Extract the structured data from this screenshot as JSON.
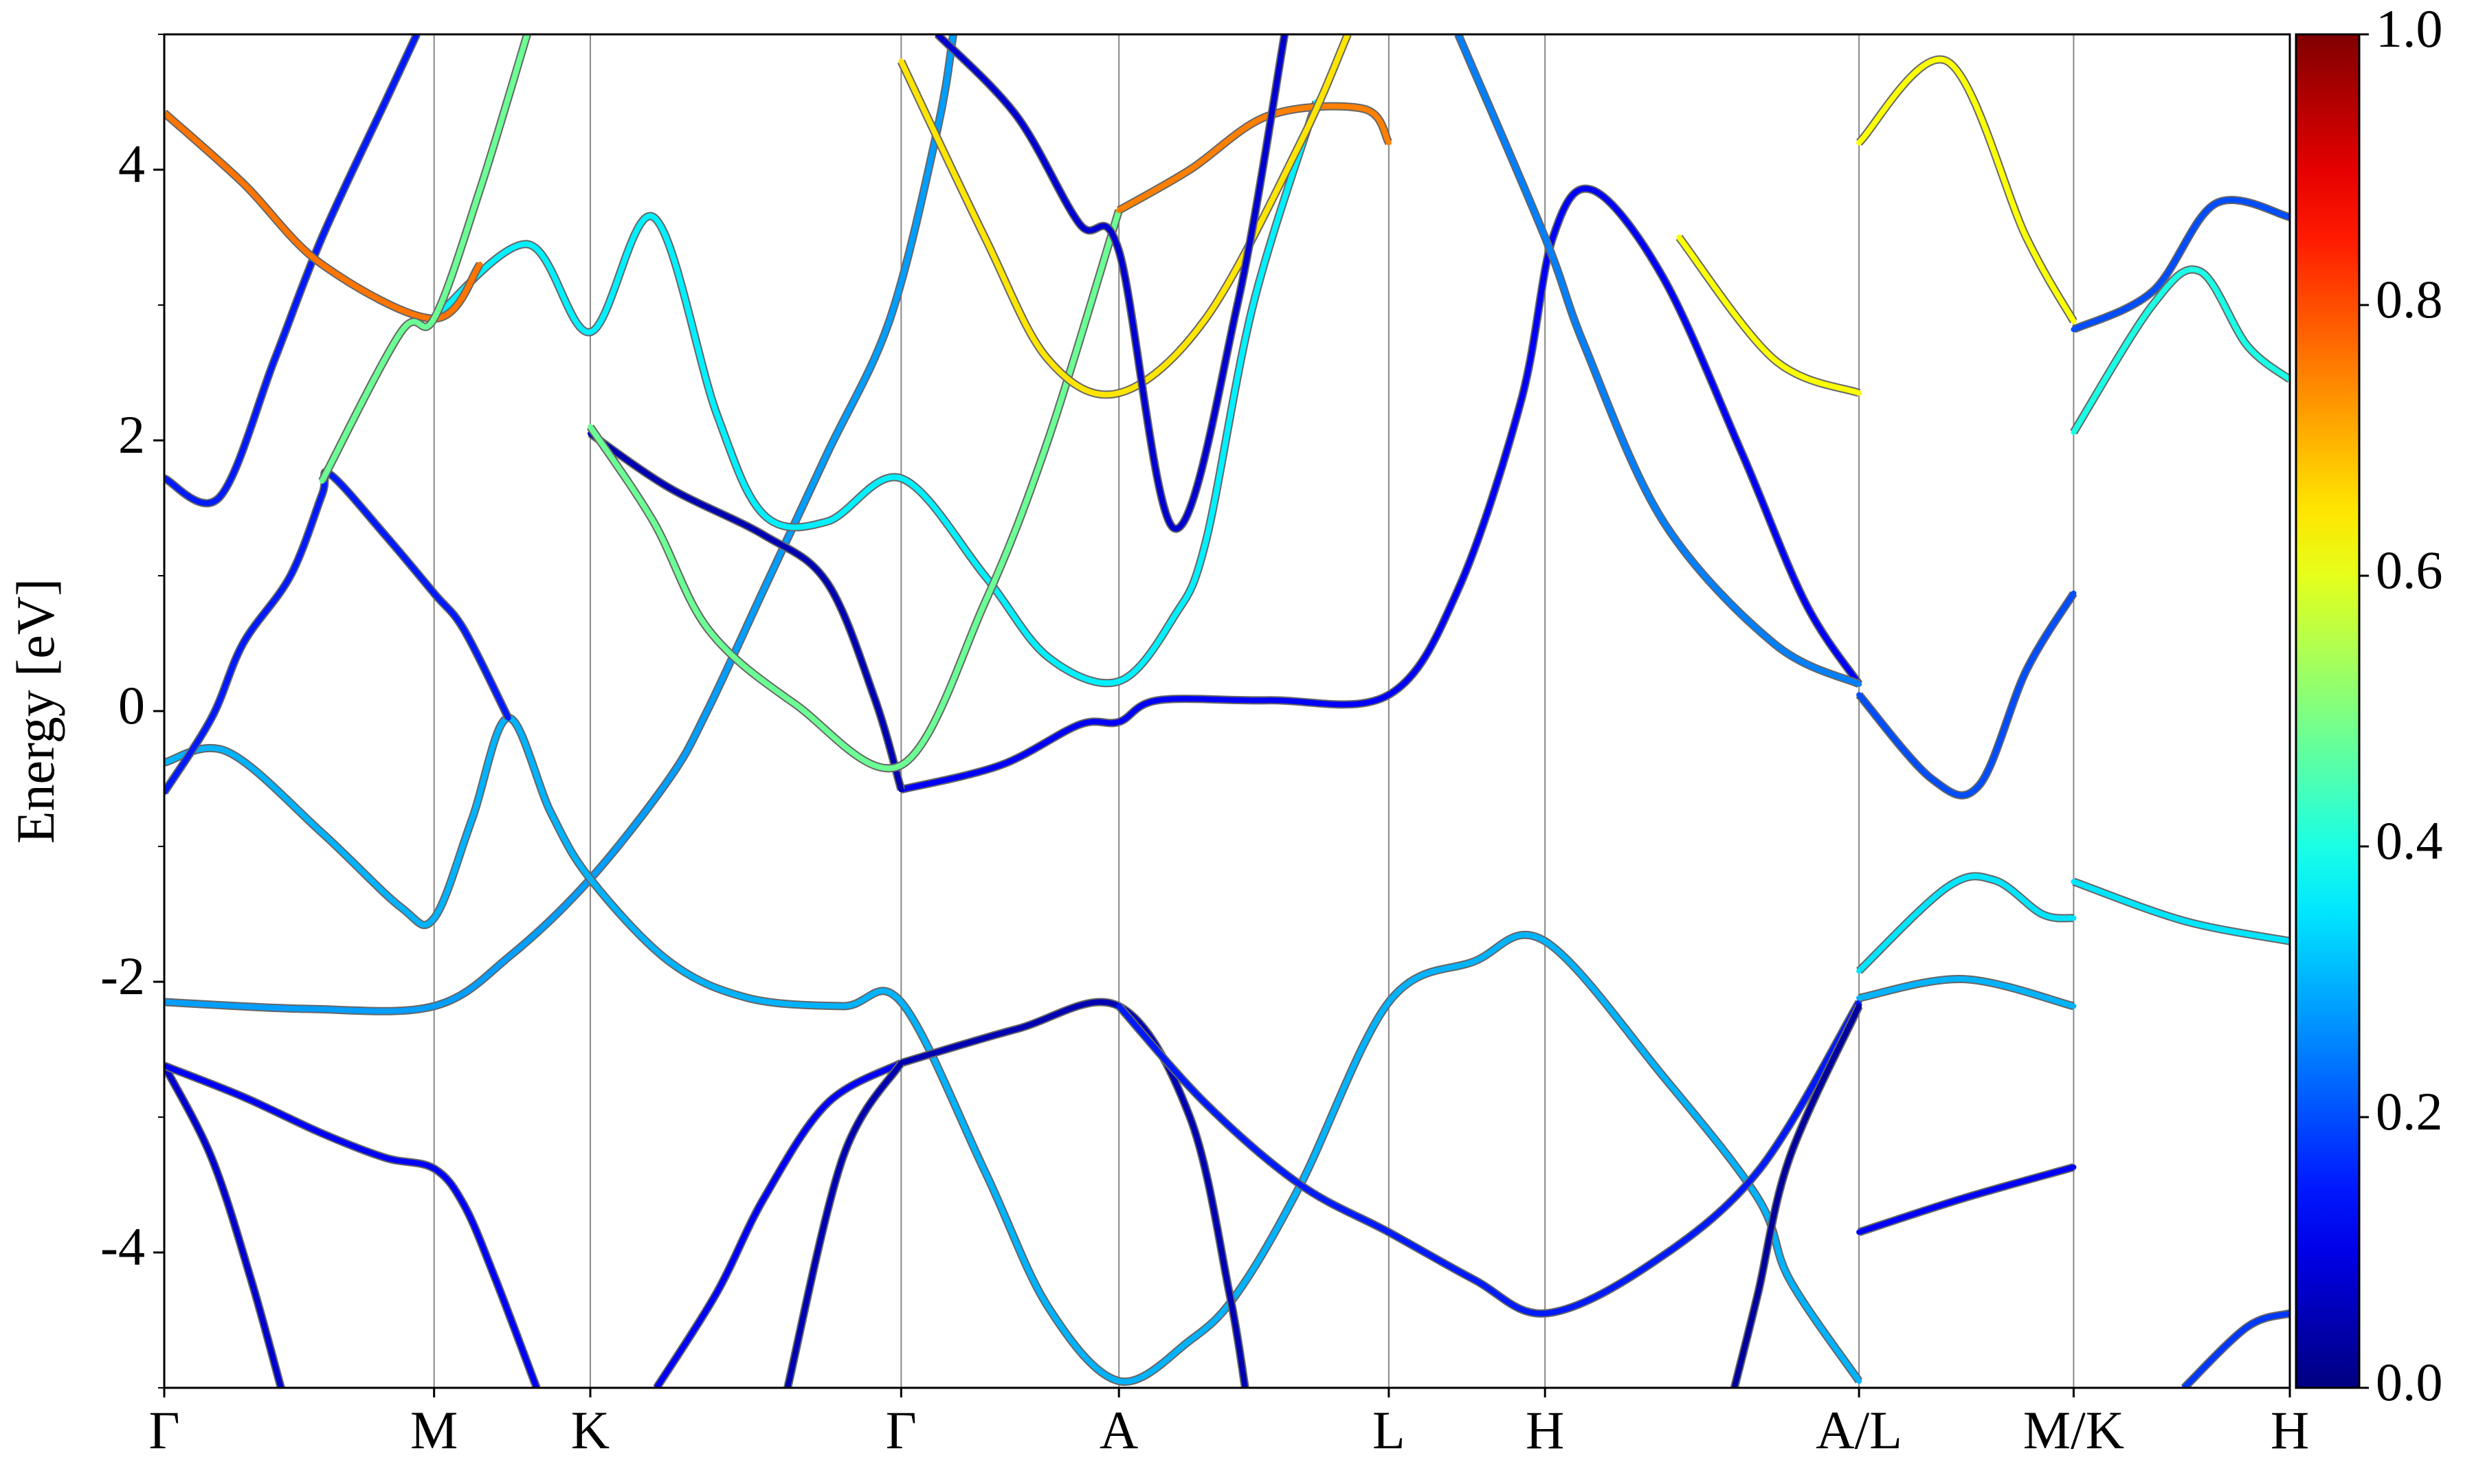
{
  "chart_data": {
    "type": "band-structure",
    "ylabel": "Energy [eV]",
    "xlim": [
      0,
      13.47
    ],
    "ylim": [
      -5,
      5
    ],
    "xticks": [
      {
        "value": 0,
        "label": "Γ"
      },
      {
        "value": 1.71,
        "label": "M"
      },
      {
        "value": 2.7,
        "label": "K"
      },
      {
        "value": 4.67,
        "label": "Γ"
      },
      {
        "value": 6.05,
        "label": "A"
      },
      {
        "value": 7.76,
        "label": "L"
      },
      {
        "value": 8.75,
        "label": "H"
      },
      {
        "value": 10.74,
        "label": "A/L"
      },
      {
        "value": 12.1,
        "label": "M/K"
      },
      {
        "value": 13.47,
        "label": "H"
      }
    ],
    "yticks": [
      -4,
      -2,
      0,
      2,
      4
    ],
    "yminorticks": [
      -5,
      -3,
      -1,
      1,
      3,
      5
    ],
    "xgrid": true,
    "colorbar": {
      "colormap": "jet",
      "lim": [
        0,
        1
      ],
      "ticks": [
        {
          "value": 0,
          "label": "0.0"
        },
        {
          "value": 0.2,
          "label": "0.2"
        },
        {
          "value": 0.4,
          "label": "0.4"
        },
        {
          "value": 0.6,
          "label": "0.6"
        },
        {
          "value": 0.8,
          "label": "0.8"
        },
        {
          "value": 1,
          "label": "1.0"
        }
      ]
    },
    "bands": [
      {
        "weight": 0.08,
        "x": [
          0,
          0.3,
          0.55,
          0.74
        ],
        "values": [
          -2.62,
          -3.3,
          -4.2,
          -5
        ]
      },
      {
        "weight": 0.12,
        "x": [
          0,
          0.5,
          1.0,
          1.4,
          1.71,
          1.9,
          2.1,
          2.36
        ],
        "values": [
          -2.62,
          -2.85,
          -3.12,
          -3.3,
          -3.38,
          -3.65,
          -4.2,
          -5
        ]
      },
      {
        "weight": 0.28,
        "x": [
          0,
          0.9,
          1.71,
          2.2,
          2.7,
          3.2,
          3.44,
          3.8,
          4.2,
          4.6,
          4.9,
          5.0
        ],
        "values": [
          -2.15,
          -2.2,
          -2.18,
          -1.8,
          -1.24,
          -0.5,
          0.0,
          0.9,
          1.9,
          2.9,
          4.3,
          5
        ]
      },
      {
        "weight": 0.3,
        "x": [
          0,
          0.4,
          1.0,
          1.5,
          1.71,
          1.95,
          2.18,
          2.45,
          2.7,
          3.2,
          3.7,
          4.3,
          4.67,
          5.2,
          5.6,
          6.05,
          6.5,
          6.8,
          7.2,
          7.76,
          8.3,
          8.75,
          9.5,
          10.1,
          10.3,
          10.74
        ],
        "values": [
          -0.38,
          -0.3,
          -0.9,
          -1.45,
          -1.53,
          -0.8,
          -0.05,
          -0.75,
          -1.24,
          -1.85,
          -2.12,
          -2.18,
          -2.15,
          -3.4,
          -4.4,
          -4.95,
          -4.65,
          -4.3,
          -3.5,
          -2.15,
          -1.85,
          -1.7,
          -2.7,
          -3.6,
          -4.2,
          -4.95
        ]
      },
      {
        "weight": 0.05,
        "x": [
          4.67,
          5.4,
          6.05,
          6.5,
          6.75,
          6.85
        ],
        "values": [
          -2.6,
          -2.35,
          -2.18,
          -3.0,
          -4.3,
          -5
        ]
      },
      {
        "weight": 0.12,
        "x": [
          4.67,
          4.2,
          3.8,
          3.5,
          3.12
        ],
        "values": [
          -2.6,
          -2.9,
          -3.6,
          -4.3,
          -5
        ]
      },
      {
        "weight": 0.05,
        "x": [
          4.67,
          4.3,
          3.95
        ],
        "values": [
          -2.6,
          -3.3,
          -5
        ]
      },
      {
        "weight": 0.15,
        "x": [
          6.05,
          6.6,
          7.2,
          7.76,
          8.3,
          8.75,
          9.4,
          10.1,
          10.74
        ],
        "values": [
          -2.18,
          -2.9,
          -3.5,
          -3.85,
          -4.2,
          -4.45,
          -4.1,
          -3.4,
          -2.15
        ]
      },
      {
        "weight": 0.03,
        "x": [
          10.74,
          10.3,
          10.1,
          9.95
        ],
        "values": [
          -2.18,
          -3.3,
          -4.3,
          -5
        ]
      },
      {
        "weight": 0.12,
        "x": [
          4.67,
          5.3,
          5.8,
          6.05,
          6.3,
          7.0,
          7.76,
          8.2,
          8.6,
          8.8,
          9.05,
          9.5,
          10.0,
          10.4,
          10.74
        ],
        "values": [
          -0.58,
          -0.4,
          -0.1,
          -0.08,
          0.08,
          0.08,
          0.12,
          0.9,
          2.3,
          3.5,
          3.85,
          3.2,
          1.9,
          0.8,
          0.2
        ]
      },
      {
        "weight": 0.15,
        "x": [
          0,
          0.3,
          0.5,
          0.8,
          1.0,
          1.05,
          1.4,
          1.71,
          1.9,
          2.18
        ],
        "values": [
          -0.6,
          -0.05,
          0.5,
          1.0,
          1.6,
          1.75,
          1.3,
          0.87,
          0.6,
          -0.05
        ]
      },
      {
        "weight": 0.05,
        "x": [
          2.7,
          3.2,
          3.8,
          4.2,
          4.5,
          4.67
        ],
        "values": [
          2.05,
          1.65,
          1.3,
          0.95,
          0.1,
          -0.58
        ]
      },
      {
        "weight": 0.15,
        "x": [
          0,
          0.35,
          0.7,
          1.0,
          1.4,
          1.6
        ],
        "values": [
          1.72,
          1.58,
          2.6,
          3.5,
          4.5,
          5
        ]
      },
      {
        "weight": 0.36,
        "x": [
          1.71,
          2.3,
          2.7,
          3.1,
          3.5,
          3.8,
          4.2,
          4.67,
          5.2,
          5.6,
          6.05,
          6.4,
          6.6,
          6.9,
          7.3
        ],
        "values": [
          2.9,
          3.45,
          2.8,
          3.65,
          2.2,
          1.45,
          1.4,
          1.72,
          1.0,
          0.4,
          0.22,
          0.7,
          1.25,
          3.0,
          4.5
        ]
      },
      {
        "weight": 0.76,
        "x": [
          0,
          0.5,
          1.0,
          1.71,
          2.0
        ],
        "values": [
          4.42,
          3.9,
          3.3,
          2.9,
          3.3
        ]
      },
      {
        "weight": 0.48,
        "x": [
          1.0,
          1.5,
          1.71,
          2.0,
          2.3
        ],
        "values": [
          1.7,
          2.8,
          2.9,
          3.85,
          5
        ]
      },
      {
        "weight": 0.48,
        "x": [
          2.7,
          3.1,
          3.45,
          4.0,
          4.67,
          5.2,
          5.6,
          6.05
        ],
        "values": [
          2.1,
          1.4,
          0.6,
          0.05,
          -0.4,
          0.8,
          2.0,
          3.7
        ]
      },
      {
        "weight": 0.75,
        "x": [
          6.05,
          6.5,
          7.0,
          7.6,
          7.76
        ],
        "values": [
          3.7,
          4.0,
          4.4,
          4.45,
          4.2
        ]
      },
      {
        "weight": 0.65,
        "x": [
          4.67,
          5.2,
          5.6,
          6.05,
          6.6,
          7.2,
          7.5
        ],
        "values": [
          4.8,
          3.5,
          2.6,
          2.35,
          2.9,
          4.2,
          5
        ]
      },
      {
        "weight": 0.08,
        "x": [
          4.9,
          5.4,
          5.8,
          6.05,
          6.4,
          6.8,
          7.1
        ],
        "values": [
          5,
          4.4,
          3.6,
          3.4,
          1.35,
          3.0,
          5
        ]
      },
      {
        "weight": 0.25,
        "x": [
          8.2,
          8.75,
          9.0,
          9.5,
          10.2,
          10.74
        ],
        "values": [
          5,
          3.5,
          2.7,
          1.4,
          0.5,
          0.2
        ]
      },
      {
        "weight": 0.62,
        "x": [
          9.6,
          10.2,
          10.74
        ],
        "values": [
          3.5,
          2.6,
          2.35
        ]
      },
      {
        "weight": 0.2,
        "x": [
          10.74,
          11.2,
          11.5,
          11.8,
          12.1
        ],
        "values": [
          0.12,
          -0.5,
          -0.55,
          0.3,
          0.87
        ]
      },
      {
        "weight": 0.35,
        "x": [
          10.74,
          11.3,
          11.6,
          11.9,
          12.1
        ],
        "values": [
          -1.92,
          -1.3,
          -1.25,
          -1.5,
          -1.53
        ]
      },
      {
        "weight": 0.3,
        "x": [
          10.74,
          11.4,
          12.1
        ],
        "values": [
          -2.12,
          -1.98,
          -2.18
        ]
      },
      {
        "weight": 0.12,
        "x": [
          10.74,
          11.4,
          12.1
        ],
        "values": [
          -3.85,
          -3.6,
          -3.37
        ]
      },
      {
        "weight": 0.35,
        "x": [
          12.1,
          12.8,
          13.47
        ],
        "values": [
          -1.26,
          -1.55,
          -1.7
        ]
      },
      {
        "weight": 0.4,
        "x": [
          12.1,
          12.6,
          12.9,
          13.2,
          13.47
        ],
        "values": [
          2.06,
          3.0,
          3.25,
          2.7,
          2.45
        ]
      },
      {
        "weight": 0.2,
        "x": [
          12.1,
          12.6,
          13.0,
          13.47
        ],
        "values": [
          2.82,
          3.1,
          3.75,
          3.65
        ]
      },
      {
        "weight": 0.18,
        "x": [
          12.8,
          13.2,
          13.47
        ],
        "values": [
          -5,
          -4.55,
          -4.45
        ]
      },
      {
        "weight": 0.62,
        "x": [
          10.74,
          11.3,
          11.8,
          12.1
        ],
        "values": [
          4.2,
          4.8,
          3.5,
          2.88
        ]
      }
    ]
  }
}
